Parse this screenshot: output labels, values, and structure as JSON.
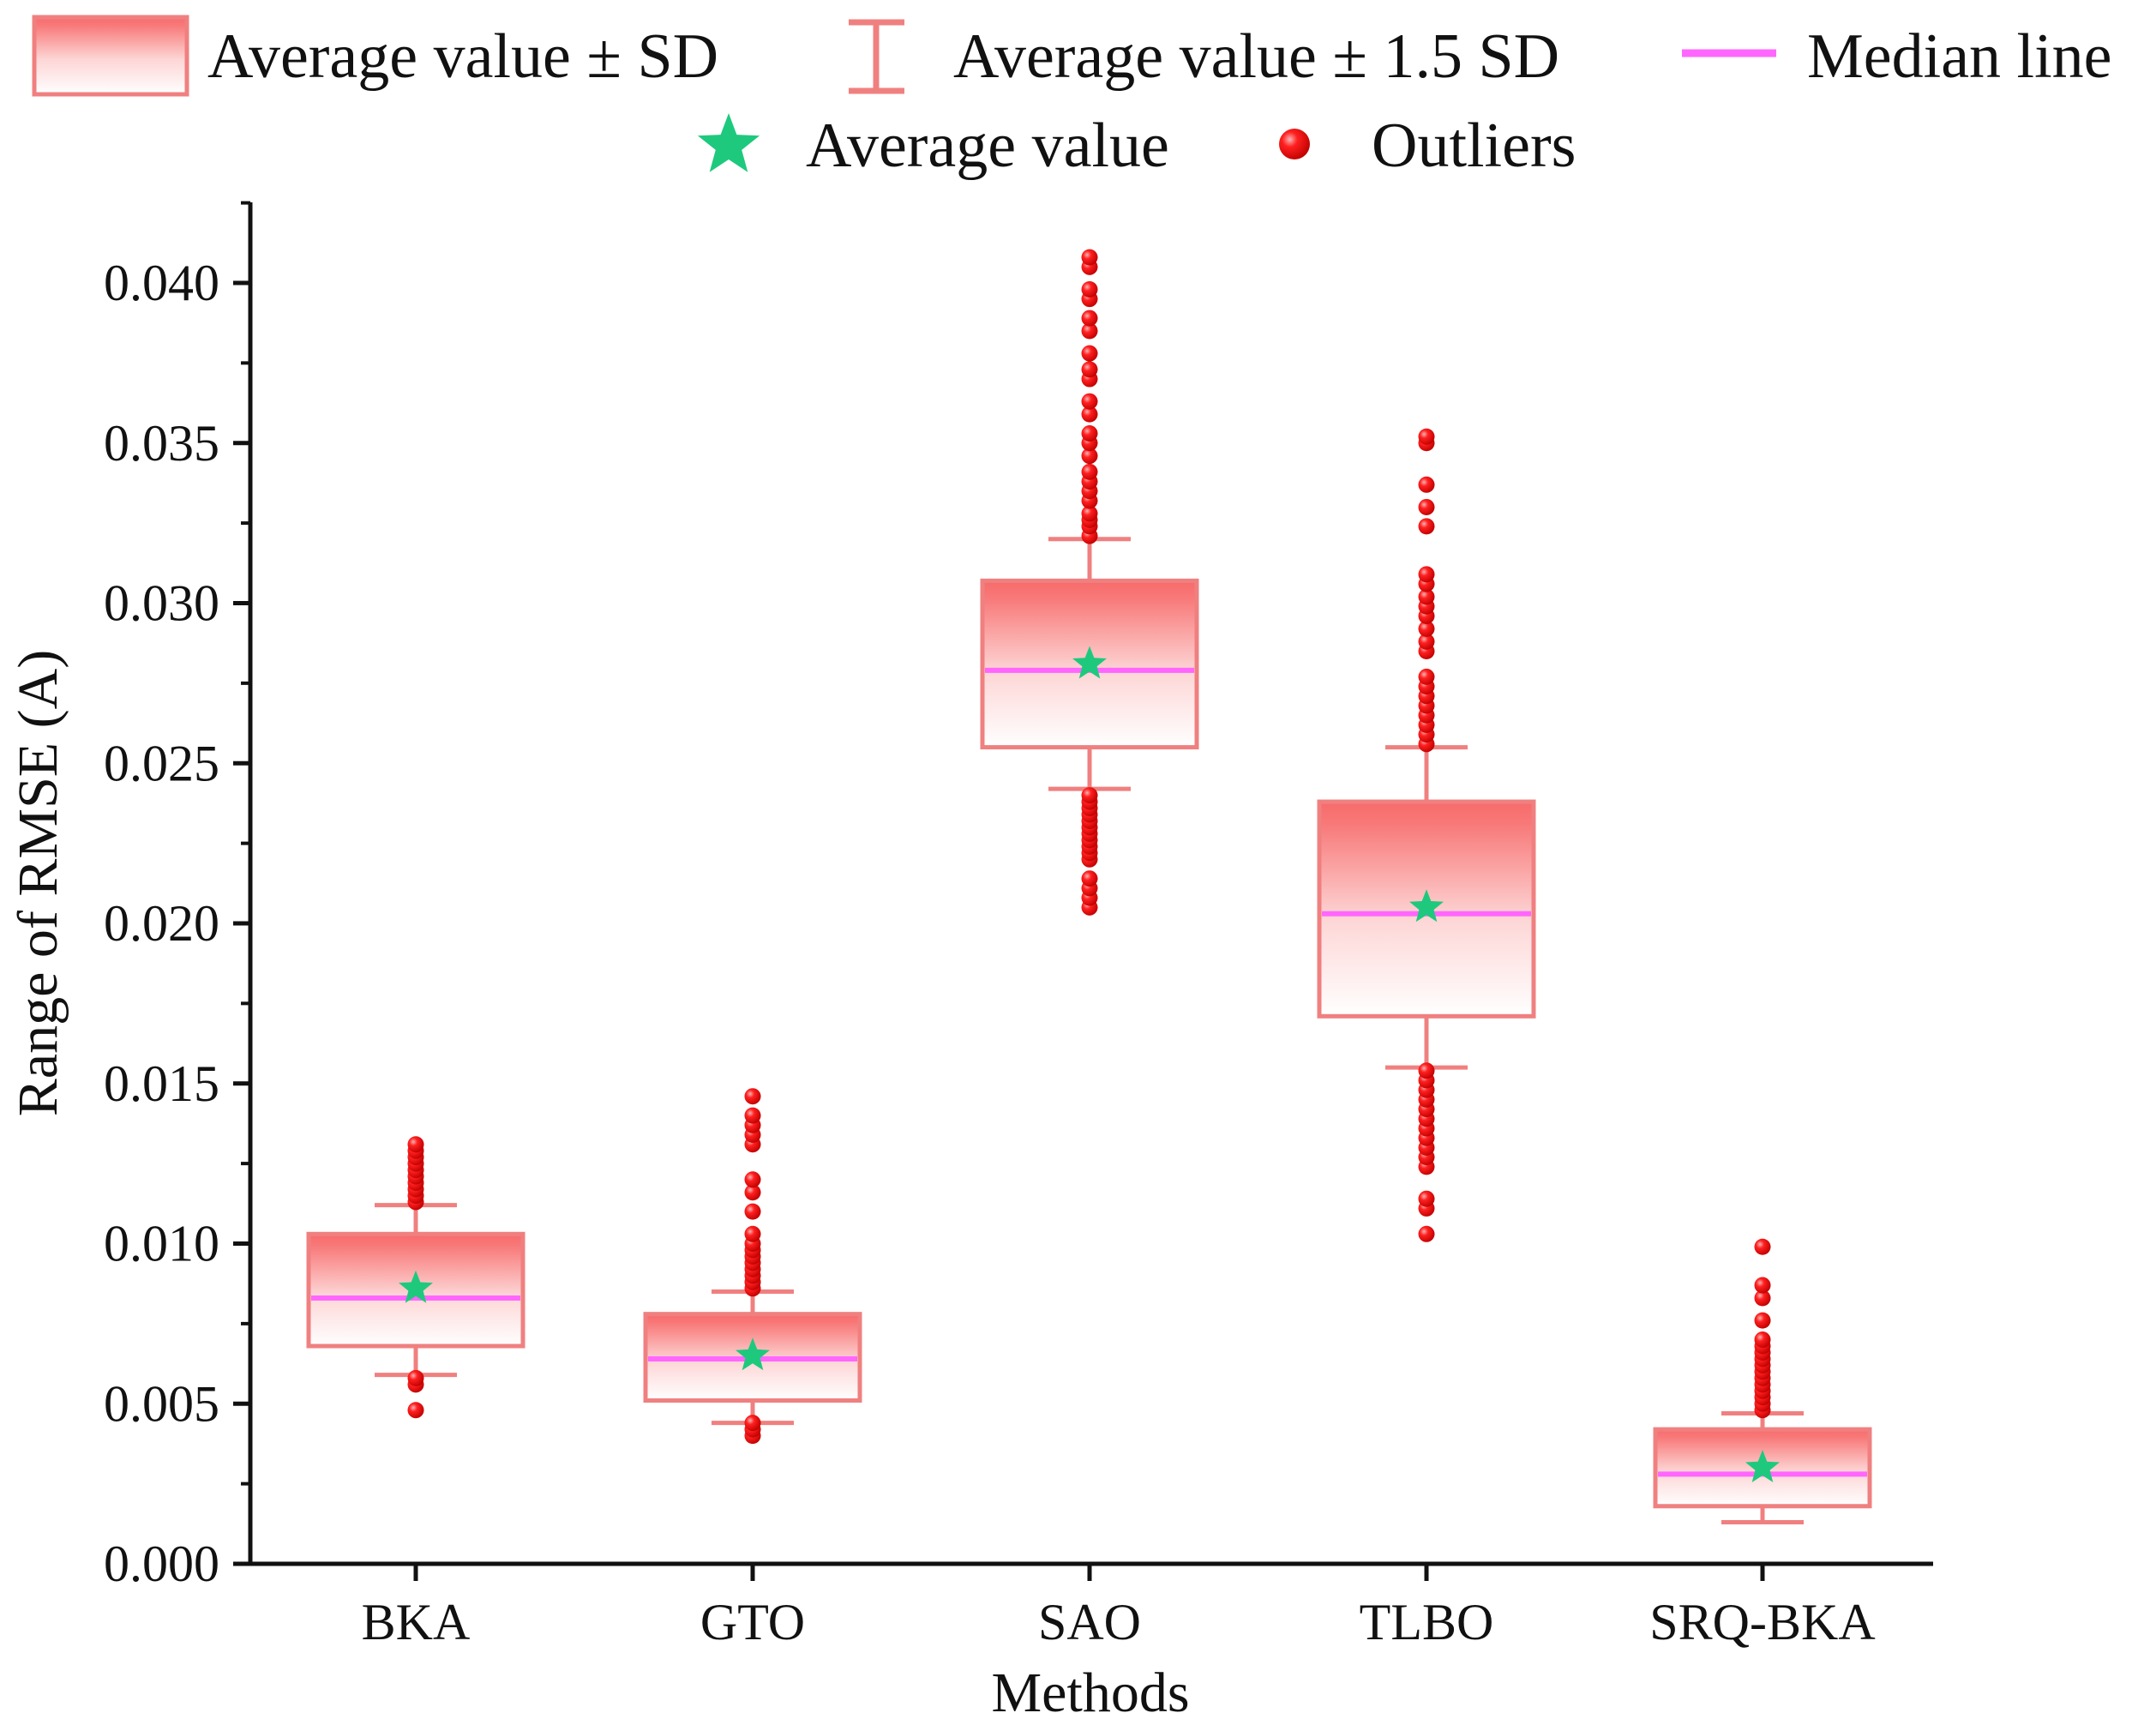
{
  "chart_data": {
    "type": "box",
    "title": "",
    "xlabel": "Methods",
    "ylabel": "Range of RMSE (A)",
    "ylim": [
      0.0,
      0.042
    ],
    "yticks": [
      "0.000",
      "0.005",
      "0.010",
      "0.015",
      "0.020",
      "0.025",
      "0.030",
      "0.035",
      "0.040"
    ],
    "ytick_values": [
      0.0,
      0.005,
      0.01,
      0.015,
      0.02,
      0.025,
      0.03,
      0.035,
      0.04
    ],
    "categories": [
      "BKA",
      "GTO",
      "SAO",
      "TLBO",
      "SRQ-BKA"
    ],
    "legend": {
      "position": "top",
      "items": [
        {
          "key": "sd_box",
          "label": "Average value ± SD"
        },
        {
          "key": "whisker",
          "label": "Average value ± 1.5 SD"
        },
        {
          "key": "median",
          "label": "Median line"
        },
        {
          "key": "mean",
          "label": "Average value"
        },
        {
          "key": "outlier",
          "label": "Outliers"
        }
      ]
    },
    "colors": {
      "box_edge": "#f08080",
      "box_top": "#f76b6b",
      "median": "#ff66ff",
      "mean": "#1ec97e",
      "outlier": "#ee1111",
      "axis": "#111111"
    },
    "series": [
      {
        "name": "BKA",
        "box_low": 0.0068,
        "box_high": 0.0103,
        "median": 0.0083,
        "mean": 0.0086,
        "whisker_low": 0.0059,
        "whisker_high": 0.0112,
        "outliers": [
          0.0048,
          0.0056,
          0.0058,
          0.0113,
          0.0115,
          0.0117,
          0.0119,
          0.0121,
          0.0123,
          0.0125,
          0.0127,
          0.0129,
          0.0131
        ]
      },
      {
        "name": "GTO",
        "box_low": 0.0051,
        "box_high": 0.0078,
        "median": 0.0064,
        "mean": 0.0065,
        "whisker_low": 0.0044,
        "whisker_high": 0.0085,
        "outliers": [
          0.004,
          0.0042,
          0.0044,
          0.0086,
          0.0088,
          0.009,
          0.0092,
          0.0094,
          0.0096,
          0.0098,
          0.01,
          0.0103,
          0.011,
          0.0116,
          0.012,
          0.0131,
          0.0134,
          0.0137,
          0.014,
          0.0146
        ]
      },
      {
        "name": "SAO",
        "box_low": 0.0255,
        "box_high": 0.0307,
        "median": 0.0279,
        "mean": 0.0281,
        "whisker_low": 0.0242,
        "whisker_high": 0.032,
        "outliers": [
          0.0205,
          0.0208,
          0.0211,
          0.0214,
          0.022,
          0.0222,
          0.0224,
          0.0226,
          0.0228,
          0.023,
          0.0232,
          0.0234,
          0.0236,
          0.0238,
          0.024,
          0.0321,
          0.0324,
          0.0326,
          0.0328,
          0.0332,
          0.0335,
          0.0338,
          0.0341,
          0.0346,
          0.035,
          0.0353,
          0.0359,
          0.0363,
          0.037,
          0.0373,
          0.0378,
          0.0385,
          0.0389,
          0.0395,
          0.0398,
          0.0405,
          0.0408
        ]
      },
      {
        "name": "TLBO",
        "box_low": 0.0171,
        "box_high": 0.0238,
        "median": 0.0203,
        "mean": 0.0205,
        "whisker_low": 0.0155,
        "whisker_high": 0.0255,
        "outliers": [
          0.0103,
          0.0111,
          0.0114,
          0.0124,
          0.0127,
          0.013,
          0.0133,
          0.0136,
          0.0139,
          0.0142,
          0.0145,
          0.0148,
          0.0151,
          0.0154,
          0.0256,
          0.0259,
          0.0262,
          0.0265,
          0.0268,
          0.0271,
          0.0274,
          0.0277,
          0.0285,
          0.0288,
          0.0292,
          0.0296,
          0.0299,
          0.0302,
          0.0306,
          0.0309,
          0.0324,
          0.033,
          0.0337,
          0.035,
          0.0352
        ]
      },
      {
        "name": "SRQ-BKA",
        "box_low": 0.0018,
        "box_high": 0.0042,
        "median": 0.0028,
        "mean": 0.003,
        "whisker_low": 0.0013,
        "whisker_high": 0.0047,
        "outliers": [
          0.0048,
          0.005,
          0.0052,
          0.0054,
          0.0056,
          0.0058,
          0.006,
          0.0062,
          0.0064,
          0.0066,
          0.0068,
          0.007,
          0.0076,
          0.0083,
          0.0087,
          0.0099
        ]
      }
    ]
  }
}
